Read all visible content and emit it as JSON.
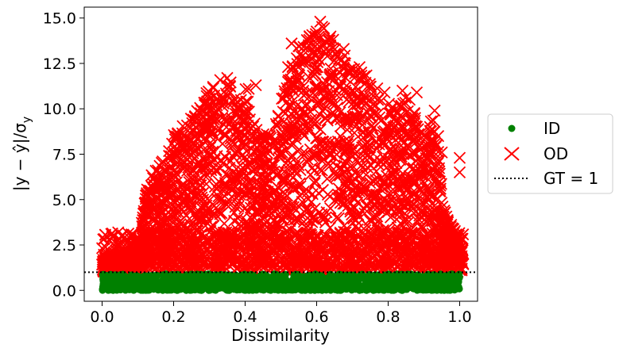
{
  "chart_data": {
    "type": "scatter",
    "title": "",
    "xlabel": "Dissimilarity",
    "ylabel": "|y − ŷ|/σ",
    "ylabel_subscript": "y",
    "xlim": [
      -0.05,
      1.05
    ],
    "ylim": [
      -0.6,
      15.6
    ],
    "xticks": [
      0.0,
      0.2,
      0.4,
      0.6,
      0.8,
      1.0
    ],
    "xtick_labels": [
      "0.0",
      "0.2",
      "0.4",
      "0.6",
      "0.8",
      "1.0"
    ],
    "yticks": [
      0.0,
      2.5,
      5.0,
      7.5,
      10.0,
      12.5,
      15.0
    ],
    "ytick_labels": [
      "0.0",
      "2.5",
      "5.0",
      "7.5",
      "10.0",
      "12.5",
      "15.0"
    ],
    "grid": false,
    "legend_position": "center-right-outside",
    "series": [
      {
        "name": "ID",
        "marker": "circle",
        "color": "#008000",
        "x_range": [
          0.0,
          1.0
        ],
        "y_range": [
          0.0,
          0.9
        ]
      },
      {
        "name": "OD",
        "marker": "x",
        "color": "#ff0000",
        "envelope": {
          "x": [
            0.0,
            0.05,
            0.1,
            0.12,
            0.15,
            0.18,
            0.2,
            0.22,
            0.25,
            0.28,
            0.3,
            0.33,
            0.36,
            0.38,
            0.4,
            0.42,
            0.45,
            0.48,
            0.5,
            0.52,
            0.55,
            0.58,
            0.61,
            0.64,
            0.67,
            0.7,
            0.73,
            0.76,
            0.79,
            0.82,
            0.85,
            0.88,
            0.9,
            0.93,
            0.96,
            0.98,
            1.0
          ],
          "ymax": [
            1.8,
            2.0,
            2.2,
            5.3,
            7.0,
            7.2,
            8.6,
            9.0,
            9.6,
            10.2,
            11.5,
            11.8,
            11.6,
            10.5,
            11.2,
            9.5,
            8.6,
            9.0,
            10.5,
            11.5,
            13.5,
            14.2,
            14.8,
            14.0,
            13.5,
            12.5,
            12.0,
            11.5,
            10.5,
            10.0,
            10.8,
            9.5,
            8.5,
            9.8,
            4.2,
            3.5,
            3.2
          ],
          "ymin": [
            1.0
          ]
        },
        "outliers": [
          {
            "x": 0.53,
            "y": 13.6
          },
          {
            "x": 0.61,
            "y": 14.8
          },
          {
            "x": 0.68,
            "y": 12.5
          },
          {
            "x": 0.79,
            "y": 10.9
          },
          {
            "x": 0.81,
            "y": 10.0
          },
          {
            "x": 0.84,
            "y": 11.0
          },
          {
            "x": 0.86,
            "y": 10.5
          },
          {
            "x": 0.88,
            "y": 10.9
          },
          {
            "x": 0.93,
            "y": 9.9
          },
          {
            "x": 0.94,
            "y": 8.5
          },
          {
            "x": 0.95,
            "y": 7.6
          },
          {
            "x": 0.94,
            "y": 7.2
          },
          {
            "x": 1.0,
            "y": 7.3
          },
          {
            "x": 1.0,
            "y": 6.5
          },
          {
            "x": 0.87,
            "y": 7.5
          },
          {
            "x": 0.86,
            "y": 6.3
          },
          {
            "x": 0.92,
            "y": 5.3
          },
          {
            "x": 0.84,
            "y": 4.8
          },
          {
            "x": 0.43,
            "y": 11.3
          },
          {
            "x": 0.41,
            "y": 11.1
          },
          {
            "x": 0.35,
            "y": 11.7
          },
          {
            "x": 0.52,
            "y": 12.3
          },
          {
            "x": 0.72,
            "y": 12.3
          },
          {
            "x": 0.58,
            "y": 14.0
          }
        ]
      },
      {
        "name": "GT = 1",
        "marker": "dotted-line",
        "color": "#000000",
        "y": 1.0
      }
    ]
  },
  "legend": {
    "entries": [
      "ID",
      "OD",
      "GT = 1"
    ]
  }
}
